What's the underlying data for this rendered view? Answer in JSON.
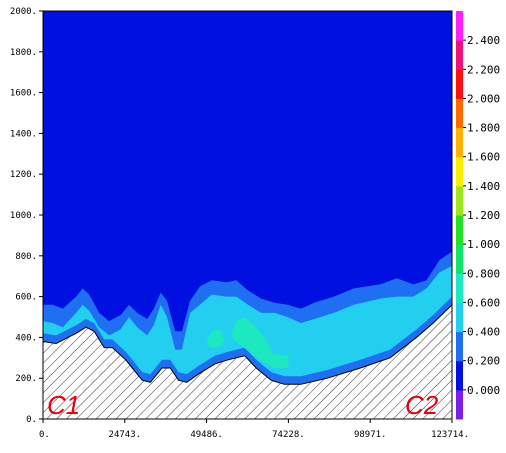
{
  "chart_data": {
    "type": "heatmap",
    "title": "",
    "xlabel": "",
    "ylabel": "",
    "xlim": [
      0,
      123714
    ],
    "ylim": [
      0,
      2000
    ],
    "x_ticks": [
      {
        "value": 0,
        "label": "0."
      },
      {
        "value": 24743,
        "label": "24743."
      },
      {
        "value": 49486,
        "label": "49486."
      },
      {
        "value": 74228,
        "label": "74228."
      },
      {
        "value": 98971,
        "label": "98971."
      },
      {
        "value": 123714,
        "label": "123714."
      }
    ],
    "y_ticks": [
      {
        "value": 0,
        "label": "0."
      },
      {
        "value": 200,
        "label": "200."
      },
      {
        "value": 400,
        "label": "400."
      },
      {
        "value": 600,
        "label": "600."
      },
      {
        "value": 800,
        "label": "800."
      },
      {
        "value": 1000,
        "label": "1000."
      },
      {
        "value": 1200,
        "label": "1200."
      },
      {
        "value": 1400,
        "label": "1400."
      },
      {
        "value": 1600,
        "label": "1600."
      },
      {
        "value": 1800,
        "label": "1800."
      },
      {
        "value": 2000,
        "label": "2000."
      }
    ],
    "colorbar": {
      "min": -0.2,
      "max": 2.6,
      "levels": [
        {
          "from": -0.2,
          "to": 0.0,
          "color": "#7a1fe6"
        },
        {
          "from": 0.0,
          "to": 0.2,
          "color": "#0010e0"
        },
        {
          "from": 0.2,
          "to": 0.4,
          "color": "#1f6ff2"
        },
        {
          "from": 0.4,
          "to": 0.6,
          "color": "#22cfef"
        },
        {
          "from": 0.6,
          "to": 0.8,
          "color": "#1ee8c0"
        },
        {
          "from": 0.8,
          "to": 1.0,
          "color": "#10e36a"
        },
        {
          "from": 1.0,
          "to": 1.2,
          "color": "#24e024"
        },
        {
          "from": 1.2,
          "to": 1.4,
          "color": "#9be61d"
        },
        {
          "from": 1.4,
          "to": 1.6,
          "color": "#f7ee00"
        },
        {
          "from": 1.6,
          "to": 1.8,
          "color": "#ffb300"
        },
        {
          "from": 1.8,
          "to": 2.0,
          "color": "#ff6a00"
        },
        {
          "from": 2.0,
          "to": 2.2,
          "color": "#ff1010"
        },
        {
          "from": 2.2,
          "to": 2.4,
          "color": "#f0107a"
        },
        {
          "from": 2.4,
          "to": 2.6,
          "color": "#ff20ff"
        }
      ],
      "labels": [
        {
          "value": 0.0,
          "label": "0.000"
        },
        {
          "value": 0.2,
          "label": "0.200"
        },
        {
          "value": 0.4,
          "label": "0.400"
        },
        {
          "value": 0.6,
          "label": "0.600"
        },
        {
          "value": 0.8,
          "label": "0.800"
        },
        {
          "value": 1.0,
          "label": "1.000"
        },
        {
          "value": 1.2,
          "label": "1.200"
        },
        {
          "value": 1.4,
          "label": "1.400"
        },
        {
          "value": 1.6,
          "label": "1.600"
        },
        {
          "value": 1.8,
          "label": "1.800"
        },
        {
          "value": 2.0,
          "label": "2.000"
        },
        {
          "value": 2.2,
          "label": "2.200"
        },
        {
          "value": 2.4,
          "label": "2.400"
        }
      ]
    },
    "terrain": {
      "hatched": true,
      "points": [
        [
          0,
          380
        ],
        [
          4000,
          370
        ],
        [
          10000,
          420
        ],
        [
          13000,
          450
        ],
        [
          15500,
          430
        ],
        [
          18500,
          350
        ],
        [
          21000,
          350
        ],
        [
          25000,
          290
        ],
        [
          27000,
          250
        ],
        [
          30000,
          190
        ],
        [
          32500,
          180
        ],
        [
          36000,
          250
        ],
        [
          38500,
          250
        ],
        [
          41000,
          190
        ],
        [
          43500,
          180
        ],
        [
          47000,
          220
        ],
        [
          52000,
          270
        ],
        [
          56000,
          290
        ],
        [
          61000,
          310
        ],
        [
          64500,
          250
        ],
        [
          69000,
          190
        ],
        [
          73000,
          170
        ],
        [
          78000,
          170
        ],
        [
          86000,
          200
        ],
        [
          96000,
          250
        ],
        [
          105000,
          300
        ],
        [
          113000,
          400
        ],
        [
          118000,
          470
        ],
        [
          123714,
          560
        ]
      ]
    },
    "regions": [
      {
        "level_color": "#1f6ff2",
        "top": [
          [
            0,
            480
          ],
          [
            3000,
            470
          ],
          [
            6000,
            450
          ],
          [
            10000,
            520
          ],
          [
            12000,
            560
          ],
          [
            14000,
            530
          ],
          [
            17000,
            450
          ],
          [
            20000,
            410
          ],
          [
            23500,
            440
          ],
          [
            26000,
            500
          ],
          [
            28500,
            450
          ],
          [
            31500,
            410
          ],
          [
            33500,
            460
          ],
          [
            35600,
            560
          ],
          [
            37500,
            500
          ],
          [
            40000,
            340
          ],
          [
            42000,
            340
          ],
          [
            44500,
            520
          ],
          [
            47500,
            560
          ],
          [
            51000,
            610
          ],
          [
            55500,
            600
          ],
          [
            58500,
            600
          ],
          [
            62000,
            560
          ],
          [
            66000,
            520
          ],
          [
            70000,
            520
          ],
          [
            74000,
            500
          ],
          [
            78000,
            470
          ],
          [
            82000,
            490
          ],
          [
            88000,
            520
          ],
          [
            94000,
            560
          ],
          [
            102000,
            590
          ],
          [
            107000,
            600
          ],
          [
            112000,
            600
          ],
          [
            116000,
            640
          ],
          [
            120000,
            720
          ],
          [
            123714,
            750
          ]
        ],
        "bottom": [
          [
            0,
            400
          ],
          [
            4000,
            390
          ],
          [
            10000,
            440
          ],
          [
            13000,
            470
          ],
          [
            15500,
            450
          ],
          [
            18500,
            370
          ],
          [
            21000,
            370
          ],
          [
            25000,
            310
          ],
          [
            27000,
            270
          ],
          [
            30000,
            210
          ],
          [
            32500,
            200
          ],
          [
            36000,
            270
          ],
          [
            38500,
            270
          ],
          [
            41000,
            210
          ],
          [
            43500,
            200
          ],
          [
            47000,
            240
          ],
          [
            52000,
            290
          ],
          [
            56000,
            310
          ],
          [
            61000,
            330
          ],
          [
            64500,
            270
          ],
          [
            69000,
            210
          ],
          [
            73000,
            190
          ],
          [
            78000,
            190
          ],
          [
            86000,
            220
          ],
          [
            96000,
            270
          ],
          [
            105000,
            320
          ],
          [
            113000,
            420
          ],
          [
            118000,
            490
          ],
          [
            123714,
            580
          ]
        ]
      },
      {
        "level_color": "#22cfef",
        "top": [
          [
            0,
            480
          ],
          [
            3000,
            470
          ],
          [
            6000,
            450
          ],
          [
            10000,
            520
          ],
          [
            12000,
            560
          ],
          [
            14000,
            530
          ],
          [
            17000,
            450
          ],
          [
            20000,
            410
          ],
          [
            23500,
            440
          ],
          [
            26000,
            500
          ],
          [
            28500,
            450
          ],
          [
            31500,
            410
          ],
          [
            33500,
            460
          ],
          [
            35600,
            560
          ],
          [
            37500,
            500
          ],
          [
            40000,
            340
          ],
          [
            42000,
            340
          ],
          [
            44500,
            520
          ],
          [
            47500,
            560
          ],
          [
            51000,
            610
          ],
          [
            55500,
            600
          ],
          [
            58500,
            600
          ],
          [
            62000,
            560
          ],
          [
            66000,
            520
          ],
          [
            70000,
            520
          ],
          [
            74000,
            500
          ],
          [
            78000,
            470
          ],
          [
            82000,
            490
          ],
          [
            88000,
            520
          ],
          [
            94000,
            560
          ],
          [
            102000,
            590
          ],
          [
            107000,
            600
          ],
          [
            112000,
            600
          ],
          [
            116000,
            640
          ],
          [
            120000,
            720
          ],
          [
            123714,
            750
          ]
        ],
        "bottom": [
          [
            0,
            420
          ],
          [
            4000,
            410
          ],
          [
            10000,
            460
          ],
          [
            13000,
            490
          ],
          [
            15500,
            470
          ],
          [
            18500,
            390
          ],
          [
            21000,
            390
          ],
          [
            25000,
            330
          ],
          [
            27000,
            290
          ],
          [
            30000,
            230
          ],
          [
            32500,
            220
          ],
          [
            36000,
            290
          ],
          [
            38500,
            290
          ],
          [
            41000,
            230
          ],
          [
            43500,
            220
          ],
          [
            47000,
            260
          ],
          [
            52000,
            310
          ],
          [
            56000,
            330
          ],
          [
            61000,
            350
          ],
          [
            64500,
            290
          ],
          [
            69000,
            230
          ],
          [
            73000,
            210
          ],
          [
            78000,
            210
          ],
          [
            86000,
            240
          ],
          [
            96000,
            290
          ],
          [
            105000,
            340
          ],
          [
            113000,
            440
          ],
          [
            118000,
            510
          ],
          [
            123714,
            600
          ]
        ]
      },
      {
        "level_color": "#1ee8c0",
        "closed": [
          [
            49500,
            380
          ],
          [
            51000,
            430
          ],
          [
            53500,
            440
          ],
          [
            55000,
            380
          ],
          [
            53000,
            350
          ],
          [
            50500,
            350
          ]
        ]
      },
      {
        "level_color": "#1ee8c0",
        "closed": [
          [
            57000,
            420
          ],
          [
            58500,
            480
          ],
          [
            61000,
            500
          ],
          [
            64500,
            450
          ],
          [
            67000,
            400
          ],
          [
            69500,
            320
          ],
          [
            74228,
            310
          ],
          [
            74228,
            250
          ],
          [
            70000,
            250
          ],
          [
            66500,
            280
          ],
          [
            63000,
            320
          ],
          [
            60000,
            360
          ],
          [
            57500,
            390
          ]
        ]
      }
    ],
    "blue_band": {
      "level_color": "#1f6ff2",
      "top": [
        [
          0,
          560
        ],
        [
          3000,
          560
        ],
        [
          6000,
          540
        ],
        [
          10000,
          600
        ],
        [
          12000,
          640
        ],
        [
          14000,
          610
        ],
        [
          17000,
          520
        ],
        [
          20000,
          480
        ],
        [
          23500,
          510
        ],
        [
          26000,
          560
        ],
        [
          28500,
          520
        ],
        [
          31500,
          490
        ],
        [
          33500,
          540
        ],
        [
          35600,
          620
        ],
        [
          37500,
          580
        ],
        [
          40000,
          430
        ],
        [
          42000,
          430
        ],
        [
          44500,
          580
        ],
        [
          47500,
          650
        ],
        [
          51000,
          680
        ],
        [
          55500,
          670
        ],
        [
          58500,
          680
        ],
        [
          62000,
          630
        ],
        [
          66000,
          590
        ],
        [
          70000,
          570
        ],
        [
          74000,
          560
        ],
        [
          78000,
          540
        ],
        [
          82000,
          570
        ],
        [
          88000,
          600
        ],
        [
          94000,
          640
        ],
        [
          102000,
          660
        ],
        [
          107000,
          690
        ],
        [
          112000,
          660
        ],
        [
          116000,
          680
        ],
        [
          120000,
          780
        ],
        [
          123714,
          820
        ]
      ]
    },
    "corner_labels": {
      "left": "C1",
      "right": "C2"
    }
  }
}
